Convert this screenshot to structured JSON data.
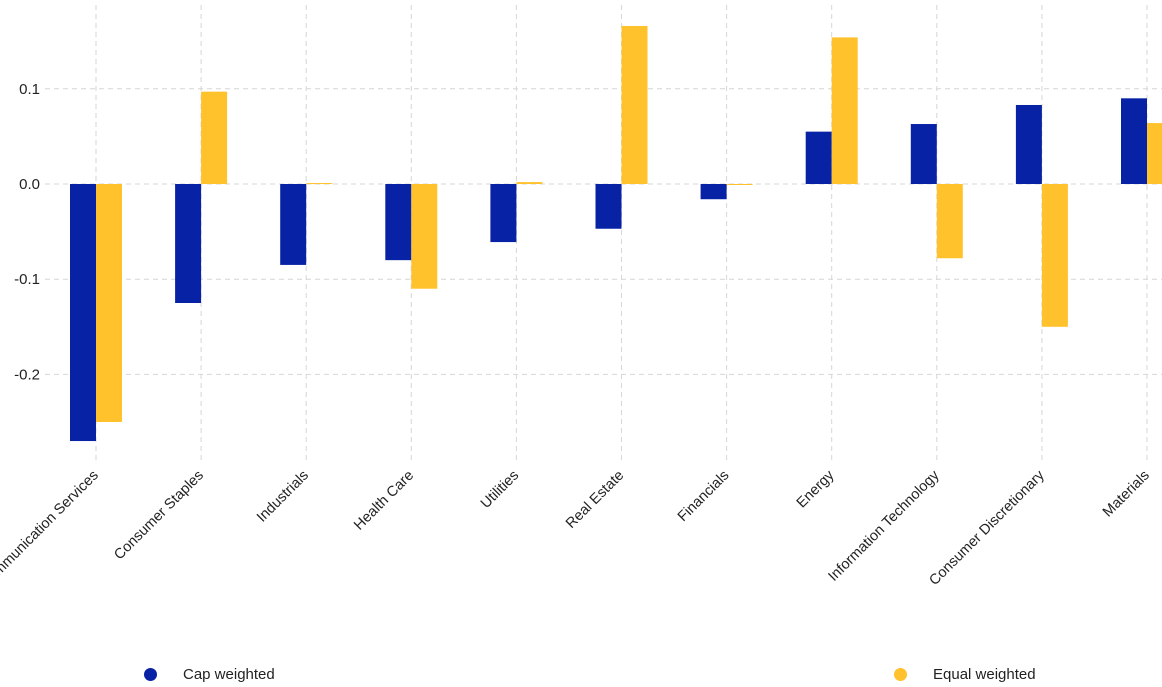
{
  "chart_data": {
    "type": "bar",
    "title": "",
    "xlabel": "",
    "ylabel": "",
    "categories": [
      "Communication Services",
      "Consumer Staples",
      "Industrials",
      "Health Care",
      "Utilities",
      "Real Estate",
      "Financials",
      "Energy",
      "Information Technology",
      "Consumer Discretionary",
      "Materials"
    ],
    "series": [
      {
        "name": "Cap weighted",
        "color": "#0822a6",
        "values": [
          -0.27,
          -0.125,
          -0.085,
          -0.08,
          -0.061,
          -0.047,
          -0.016,
          0.055,
          0.063,
          0.083,
          0.09
        ]
      },
      {
        "name": "Equal weighted",
        "color": "#ffc22c",
        "values": [
          -0.25,
          0.097,
          0.001,
          -0.11,
          0.002,
          0.166,
          -0.001,
          0.154,
          -0.078,
          -0.15,
          0.064
        ]
      }
    ],
    "ylim": [
      -0.295,
      0.185
    ],
    "yticks": [
      0.1,
      0.0,
      -0.1,
      -0.2
    ],
    "ytick_labels": [
      "0.1",
      "0.0",
      "-0.1",
      "-0.2"
    ],
    "grid": true,
    "legend_position": "bottom"
  }
}
